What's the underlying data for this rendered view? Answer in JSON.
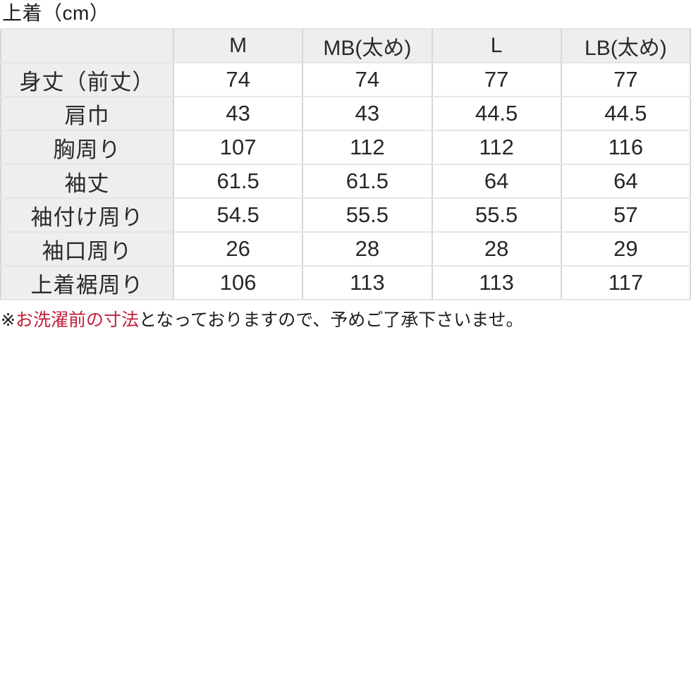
{
  "title": "上着（cm）",
  "table": {
    "corner_label": "",
    "columns": [
      "M",
      "MB(太め)",
      "L",
      "LB(太め)"
    ],
    "rows": [
      {
        "label": "身丈（前丈）",
        "values": [
          "74",
          "74",
          "77",
          "77"
        ]
      },
      {
        "label": "肩巾",
        "values": [
          "43",
          "43",
          "44.5",
          "44.5"
        ]
      },
      {
        "label": "胸周り",
        "values": [
          "107",
          "112",
          "112",
          "116"
        ]
      },
      {
        "label": "袖丈",
        "values": [
          "61.5",
          "61.5",
          "64",
          "64"
        ]
      },
      {
        "label": "袖付け周り",
        "values": [
          "54.5",
          "55.5",
          "55.5",
          "57"
        ]
      },
      {
        "label": "袖口周り",
        "values": [
          "26",
          "28",
          "28",
          "29"
        ]
      },
      {
        "label": "上着裾周り",
        "values": [
          "106",
          "113",
          "113",
          "117"
        ]
      }
    ]
  },
  "note": {
    "prefix": "※",
    "highlight": "お洗濯前の寸法",
    "rest": "となっておりますので、予めご了承下さいませ。"
  },
  "colors": {
    "highlight_red": "#c2203a",
    "header_bg": "#efeeec",
    "grid_vertical": "#d8d7d5",
    "grid_horizontal": "#e6e5e3",
    "text": "#252525"
  }
}
